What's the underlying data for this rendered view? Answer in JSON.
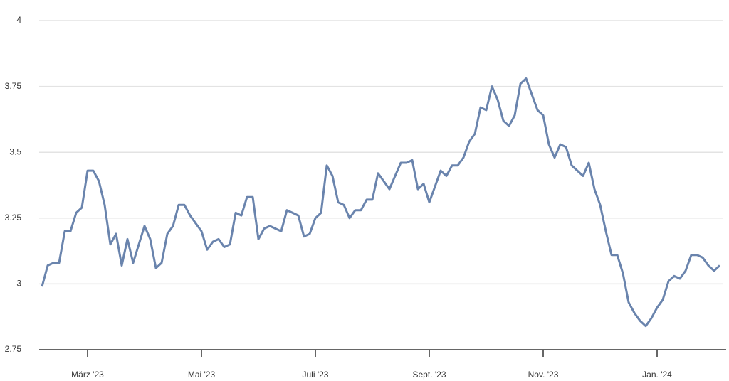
{
  "chart_data": {
    "type": "line",
    "categories": [
      null,
      null,
      null,
      null,
      null,
      null,
      null,
      null,
      "März '23",
      null,
      null,
      null,
      null,
      null,
      null,
      null,
      null,
      null,
      null,
      null,
      null,
      null,
      null,
      null,
      null,
      null,
      null,
      null,
      "Mai '23",
      null,
      null,
      null,
      null,
      null,
      null,
      null,
      null,
      null,
      null,
      null,
      null,
      null,
      null,
      null,
      null,
      null,
      null,
      null,
      "Juli '23",
      null,
      null,
      null,
      null,
      null,
      null,
      null,
      null,
      null,
      null,
      null,
      null,
      null,
      null,
      null,
      null,
      null,
      null,
      null,
      "Sept. '23",
      null,
      null,
      null,
      null,
      null,
      null,
      null,
      null,
      null,
      null,
      null,
      null,
      null,
      null,
      null,
      null,
      null,
      null,
      null,
      "Nov. '23",
      null,
      null,
      null,
      null,
      null,
      null,
      null,
      null,
      null,
      null,
      null,
      null,
      null,
      null,
      null,
      null,
      null,
      null,
      null,
      "Jan. '24",
      null,
      null,
      null,
      null,
      null,
      null,
      null,
      null,
      null,
      null,
      null
    ],
    "values": [
      2.99,
      3.07,
      3.08,
      3.08,
      3.2,
      3.2,
      3.27,
      3.29,
      3.43,
      3.43,
      3.39,
      3.3,
      3.15,
      3.19,
      3.07,
      3.17,
      3.08,
      3.15,
      3.22,
      3.17,
      3.06,
      3.08,
      3.19,
      3.22,
      3.3,
      3.3,
      3.26,
      3.23,
      3.2,
      3.13,
      3.16,
      3.17,
      3.14,
      3.15,
      3.27,
      3.26,
      3.33,
      3.33,
      3.17,
      3.21,
      3.22,
      3.21,
      3.2,
      3.28,
      3.27,
      3.26,
      3.18,
      3.19,
      3.25,
      3.27,
      3.45,
      3.41,
      3.31,
      3.3,
      3.25,
      3.28,
      3.28,
      3.32,
      3.32,
      3.42,
      3.39,
      3.36,
      3.41,
      3.46,
      3.46,
      3.47,
      3.36,
      3.38,
      3.31,
      3.37,
      3.43,
      3.41,
      3.45,
      3.45,
      3.48,
      3.54,
      3.57,
      3.67,
      3.66,
      3.75,
      3.7,
      3.62,
      3.6,
      3.64,
      3.76,
      3.78,
      3.72,
      3.66,
      3.64,
      3.53,
      3.48,
      3.53,
      3.52,
      3.45,
      3.43,
      3.41,
      3.46,
      3.36,
      3.3,
      3.2,
      3.11,
      3.11,
      3.04,
      2.93,
      2.89,
      2.86,
      2.84,
      2.87,
      2.91,
      2.94,
      3.01,
      3.03,
      3.02,
      3.05,
      3.11,
      3.11,
      3.1,
      3.07,
      3.05,
      3.07
    ],
    "color": "#6a84ad",
    "ylim": [
      2.75,
      4
    ],
    "yticks": [
      2.75,
      3,
      3.25,
      3.5,
      3.75,
      4
    ],
    "grid": true
  }
}
